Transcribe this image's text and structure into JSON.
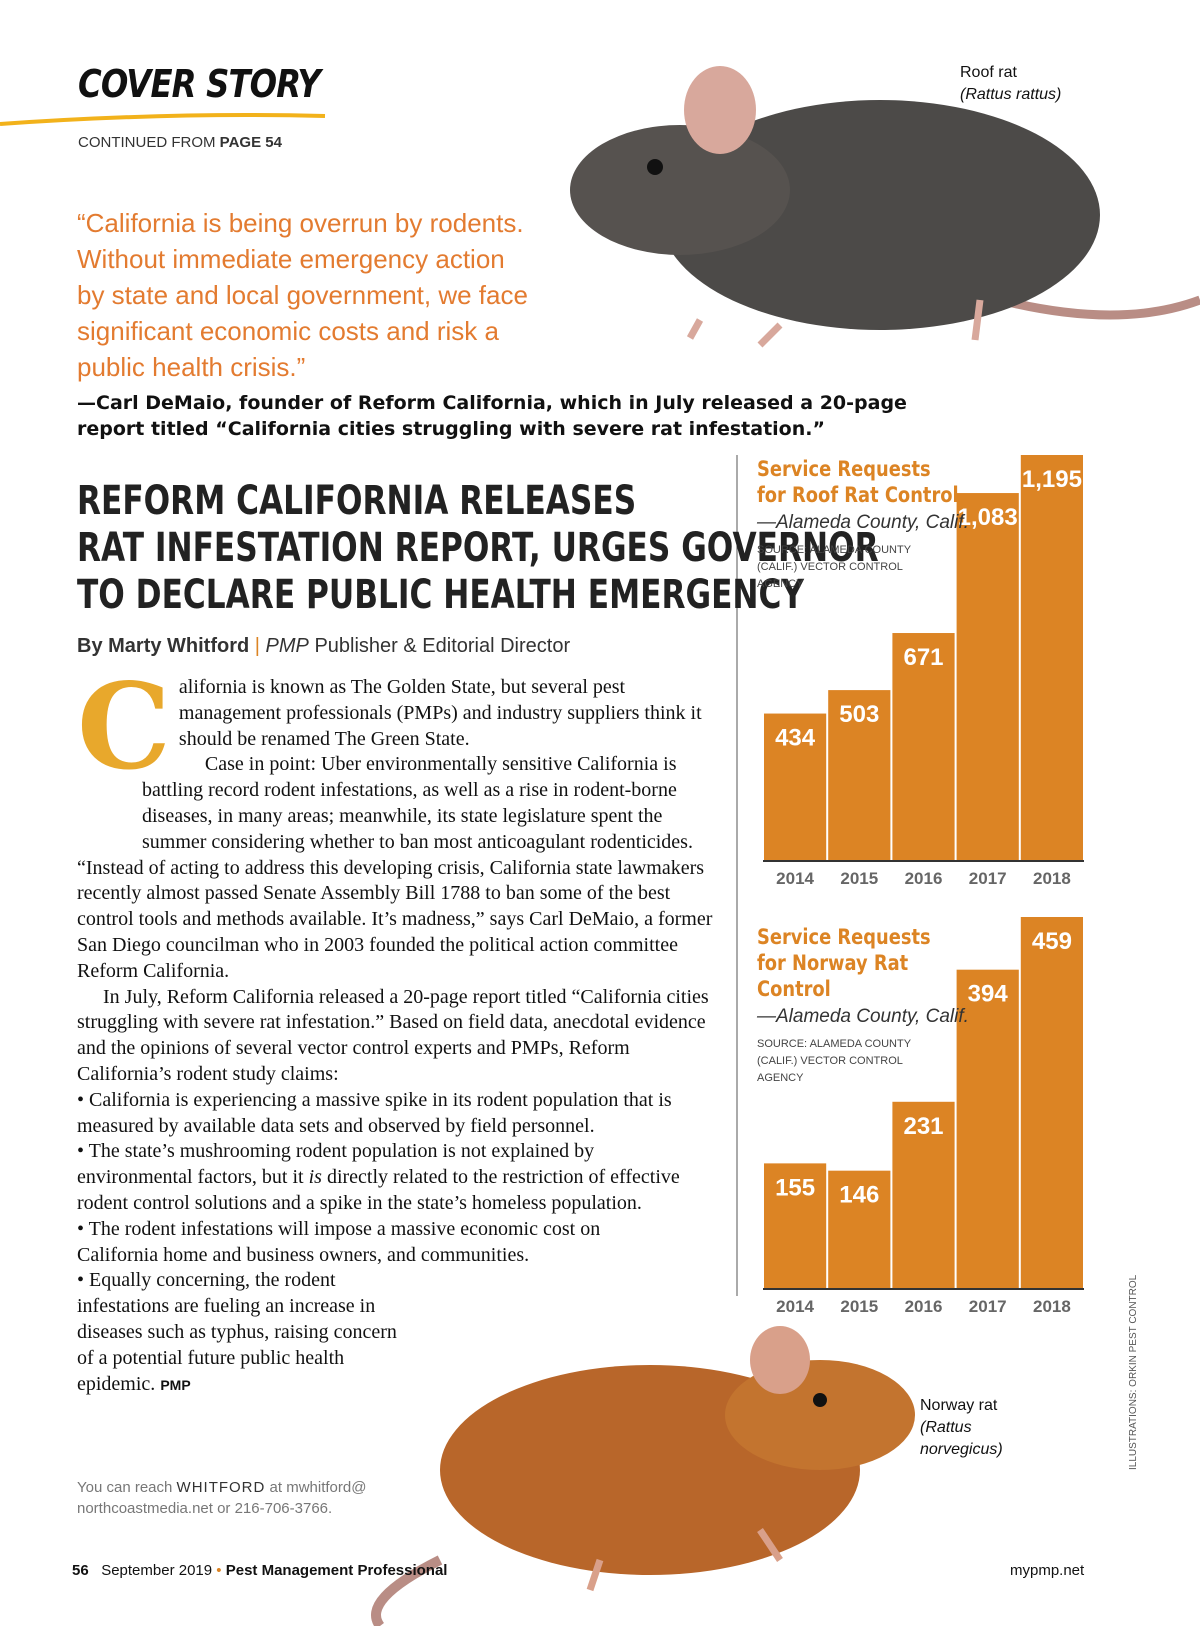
{
  "header": {
    "section": "COVER STORY",
    "continued": "CONTINUED FROM",
    "continued_page": "PAGE 54"
  },
  "captions": {
    "roof_rat": "Roof rat",
    "roof_rat_latin": "(Rattus rattus)",
    "norway_rat": "Norway rat",
    "norway_rat_latin": "(Rattus norvegicus)",
    "credit": "ILLUSTRATIONS: ORKIN PEST CONTROL"
  },
  "pull_quote": {
    "lines": [
      "“California is being overrun by rodents.",
      "Without immediate emergency action",
      "by state and local government, we face",
      "significant economic costs and risk a",
      "public health crisis.”"
    ],
    "attribution": [
      "—Carl DeMaio, founder of Reform California, which in July released a 20-page",
      "report titled “California cities struggling with severe rat infestation.”"
    ]
  },
  "article": {
    "headline": [
      "REFORM CALIFORNIA RELEASES",
      "RAT INFESTATION REPORT, URGES GOVERNOR",
      "TO DECLARE PUBLIC HEALTH EMERGENCY"
    ],
    "byline": {
      "author": "By Marty Whitford",
      "separator": "|",
      "publication": "PMP",
      "role": "Publisher & Editorial Director"
    },
    "drop_cap": "C",
    "paragraphs": [
      "alifornia is known as The Golden State, but several pest management professionals (PMPs) and industry suppliers think it should be renamed The Green State.",
      "Case in point: Uber environmentally sensitive California is battling record rodent infestations, as well as a rise in rodent-borne diseases, in many areas; meanwhile, its state legislature spent the summer considering whether to ban most anticoagulant rodenticides.",
      "“Instead of acting to address this developing crisis, California state lawmakers recently almost passed Senate Assembly Bill 1788 to ban some of the best control tools and methods available. It’s madness,” says Carl DeMaio, a former San Diego councilman who in 2003 founded the political action committee Reform California.",
      "In July, Reform California released a 20-page report titled “California cities struggling with severe rat infestation.” Based on field data, anecdotal evidence and the opinions of several vector control experts and PMPs, Reform California’s rodent study claims:"
    ],
    "bullets": [
      [
        "• California is experiencing a massive spike in its rodent population that is measured by available data sets and observed by field personnel."
      ],
      [
        "• The state’s mushrooming rodent population is not explained by environmental factors,  but it ",
        "is",
        " directly related to the restriction of effective rodent control solutions and a spike in the state’s homeless population."
      ],
      [
        "• The rodent infestations will impose a massive economic cost on California home and business owners, and communities."
      ],
      [
        "• Equally concerning, the rodent infestations are fueling an increase in diseases such as typhus, raising concern of a potential future public health epidemic."
      ]
    ],
    "end_mark": "PMP",
    "contact": {
      "lead": "You can reach",
      "name": "WHITFORD",
      "rest": "at mwhitford@ northcoastmedia.net or 216-706-3766."
    }
  },
  "footer": {
    "page": "56",
    "date": "September 2019",
    "bullet": "•",
    "magazine": "Pest Management Professional",
    "site": "mypmp.net"
  },
  "chart_data": [
    {
      "type": "bar",
      "title": "Service Requests for Roof Rat Control",
      "subtitle": "—Alameda County, Calif.",
      "source": "SOURCE: ALAMEDA COUNTY (CALIF.) VECTOR CONTROL AGENCY",
      "categories": [
        "2014",
        "2015",
        "2016",
        "2017",
        "2018"
      ],
      "values": [
        434,
        503,
        671,
        1083,
        1195
      ],
      "value_labels": [
        "434",
        "503",
        "671",
        "1,083",
        "1,195"
      ],
      "color": "#dc8424"
    },
    {
      "type": "bar",
      "title": "Service Requests for Norway Rat Control",
      "subtitle": "—Alameda County, Calif.",
      "source": "SOURCE: ALAMEDA COUNTY (CALIF.) VECTOR CONTROL AGENCY",
      "categories": [
        "2014",
        "2015",
        "2016",
        "2017",
        "2018"
      ],
      "values": [
        155,
        146,
        231,
        394,
        459
      ],
      "color": "#dc8424"
    }
  ]
}
